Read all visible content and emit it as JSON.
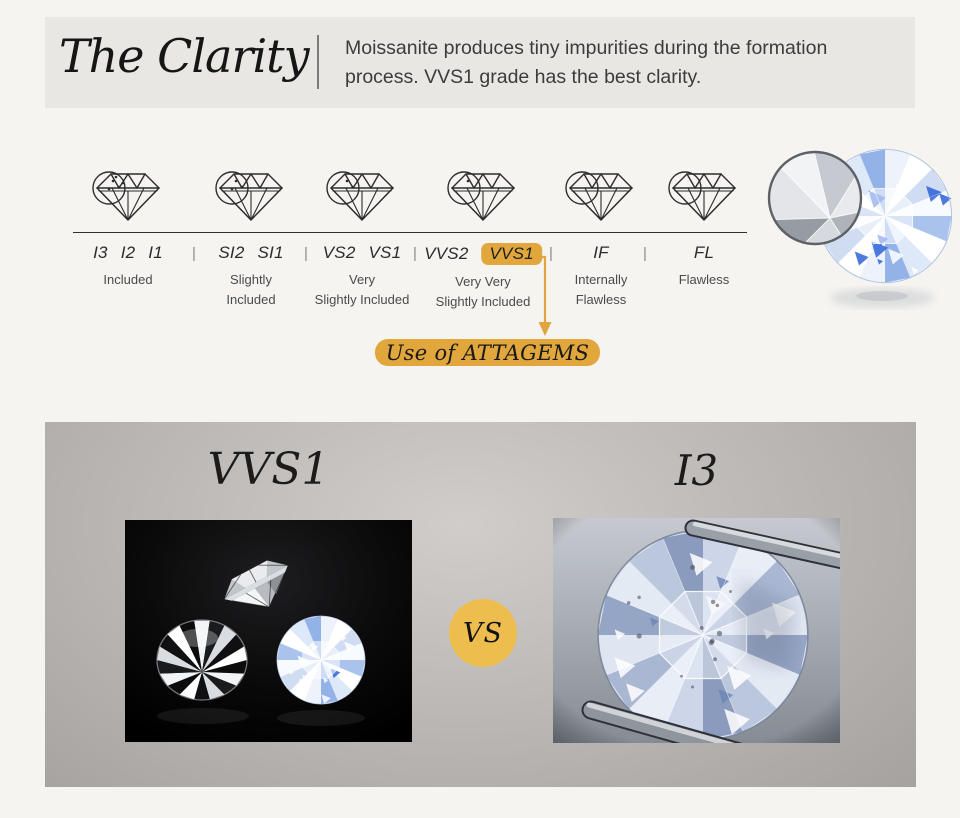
{
  "theme": {
    "gold": "#e1a73c",
    "gold_light": "#edbd4e",
    "page_bg": "#f5f4f1",
    "header_bg": "#e9e7e4"
  },
  "header": {
    "title": "The Clarity",
    "description": "Moissanite produces tiny impurities during the formation process. VVS1 grade has the best clarity."
  },
  "clarity_scale": {
    "separator": "|",
    "groups": [
      {
        "grades": [
          "I3",
          "I2",
          "I1"
        ],
        "label_lines": [
          "Included"
        ],
        "inclusion_dots": 5
      },
      {
        "grades": [
          "SI2",
          "SI1"
        ],
        "label_lines": [
          "Slightly",
          "Included"
        ],
        "inclusion_dots": 3
      },
      {
        "grades": [
          "VS2",
          "VS1"
        ],
        "label_lines": [
          "Very",
          "Slightly Included"
        ],
        "inclusion_dots": 2
      },
      {
        "grades": [
          "VVS2",
          "VVS1"
        ],
        "label_lines": [
          "Very Very",
          "Slightly Included"
        ],
        "inclusion_dots": 1,
        "highlighted_grade": "VVS1"
      },
      {
        "grades": [
          "IF"
        ],
        "label_lines": [
          "Internally",
          "Flawless"
        ],
        "inclusion_dots": 0
      },
      {
        "grades": [
          "FL"
        ],
        "label_lines": [
          "Flawless"
        ],
        "inclusion_dots": 0
      }
    ],
    "callout": {
      "text": "Use of ATTAGEMS"
    }
  },
  "comparison": {
    "left_title": "VVS1",
    "right_title": "I3",
    "vs_label": "VS"
  },
  "icons": {
    "scale_icon": "loupe-diamond-icon",
    "callout_arrow": "down-arrow-icon"
  }
}
